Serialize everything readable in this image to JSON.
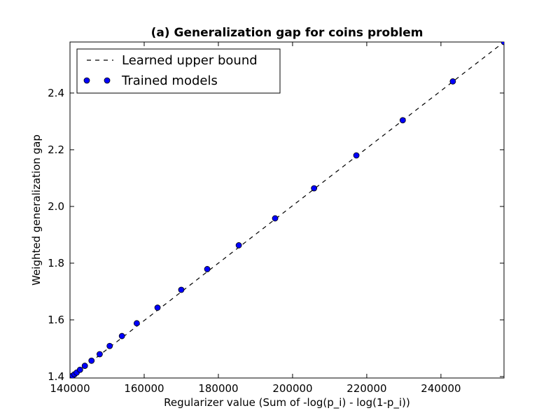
{
  "chart_data": {
    "type": "scatter",
    "title": "(a) Generalization gap for coins problem",
    "xlabel": "Regularizer value (Sum of -log(p_i) - log(1-p_i))",
    "ylabel": "Weighted generalization gap",
    "xlim": [
      140000,
      257000
    ],
    "ylim": [
      1.395,
      2.58
    ],
    "xticks": [
      140000,
      160000,
      180000,
      200000,
      220000,
      240000
    ],
    "yticks": [
      1.4,
      1.6,
      1.8,
      2.0,
      2.2,
      2.4
    ],
    "xtick_labels": [
      "140000",
      "160000",
      "180000",
      "200000",
      "220000",
      "240000"
    ],
    "ytick_labels": [
      "1.4",
      "1.6",
      "1.8",
      "2.0",
      "2.2",
      "2.4"
    ],
    "grid": false,
    "legend_position": "top-left",
    "series": [
      {
        "name": "Learned upper bound",
        "style": "dashed-line",
        "color": "#000000",
        "x": [
          140000,
          257000
        ],
        "y": [
          1.395,
          2.58
        ]
      },
      {
        "name": "Trained models",
        "style": "markers",
        "color": "#0000ff",
        "x": [
          140000,
          140300,
          140700,
          141200,
          141800,
          142700,
          144000,
          145800,
          148000,
          150700,
          154000,
          158000,
          163600,
          170000,
          177000,
          185500,
          195300,
          205800,
          217200,
          229700,
          243200,
          257000
        ],
        "y": [
          1.396,
          1.399,
          1.403,
          1.408,
          1.414,
          1.424,
          1.438,
          1.456,
          1.479,
          1.508,
          1.543,
          1.588,
          1.643,
          1.706,
          1.779,
          1.863,
          1.958,
          2.064,
          2.18,
          2.304,
          2.441,
          2.58
        ]
      }
    ]
  }
}
